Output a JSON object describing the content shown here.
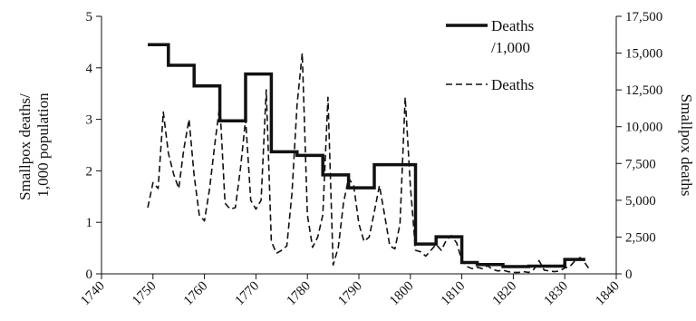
{
  "chart_data": {
    "type": "line",
    "x_ticks": [
      1740,
      1750,
      1760,
      1770,
      1780,
      1790,
      1800,
      1810,
      1820,
      1830,
      1840
    ],
    "xlim": [
      1740,
      1840
    ],
    "y_left": {
      "label_lines": [
        "Smallpox deaths/",
        "1,000 population"
      ],
      "ticks": [
        0,
        1,
        2,
        3,
        4,
        5
      ],
      "ylim": [
        0,
        5
      ]
    },
    "y_right": {
      "label": "Smallpox deaths",
      "ticks": [
        "0",
        "2,500",
        "5,000",
        "7,500",
        "10,000",
        "12,500",
        "15,000",
        "17,500"
      ],
      "tick_values": [
        0,
        2500,
        5000,
        7500,
        10000,
        12500,
        15000,
        17500
      ],
      "ylim": [
        0,
        17500
      ]
    },
    "legend": {
      "rate_label_lines": [
        "Deaths",
        "/1,000"
      ],
      "deaths_label": "Deaths",
      "position": "top-right"
    },
    "series": [
      {
        "name": "Deaths /1,000",
        "axis": "left",
        "style": "solid-step",
        "steps": [
          {
            "from": 1749,
            "to": 1753,
            "value": 4.45
          },
          {
            "from": 1753,
            "to": 1758,
            "value": 4.05
          },
          {
            "from": 1758,
            "to": 1763,
            "value": 3.65
          },
          {
            "from": 1763,
            "to": 1768,
            "value": 2.97
          },
          {
            "from": 1768,
            "to": 1773,
            "value": 3.88
          },
          {
            "from": 1773,
            "to": 1778,
            "value": 2.37
          },
          {
            "from": 1778,
            "to": 1783,
            "value": 2.3
          },
          {
            "from": 1783,
            "to": 1788,
            "value": 1.92
          },
          {
            "from": 1788,
            "to": 1793,
            "value": 1.67
          },
          {
            "from": 1793,
            "to": 1798,
            "value": 2.12
          },
          {
            "from": 1798,
            "to": 1801,
            "value": 2.12
          },
          {
            "from": 1801,
            "to": 1805,
            "value": 0.58
          },
          {
            "from": 1805,
            "to": 1810,
            "value": 0.72
          },
          {
            "from": 1810,
            "to": 1813,
            "value": 0.22
          },
          {
            "from": 1813,
            "to": 1818,
            "value": 0.18
          },
          {
            "from": 1818,
            "to": 1823,
            "value": 0.14
          },
          {
            "from": 1823,
            "to": 1830,
            "value": 0.15
          },
          {
            "from": 1830,
            "to": 1834,
            "value": 0.28
          }
        ]
      },
      {
        "name": "Deaths",
        "axis": "right",
        "style": "dashed",
        "x": [
          1749,
          1750,
          1751,
          1752,
          1753,
          1754,
          1755,
          1756,
          1757,
          1758,
          1759,
          1760,
          1761,
          1762,
          1763,
          1764,
          1765,
          1766,
          1767,
          1768,
          1769,
          1770,
          1771,
          1772,
          1773,
          1774,
          1775,
          1776,
          1777,
          1778,
          1779,
          1780,
          1781,
          1782,
          1783,
          1784,
          1785,
          1786,
          1787,
          1788,
          1789,
          1790,
          1791,
          1792,
          1793,
          1794,
          1795,
          1796,
          1797,
          1798,
          1799,
          1800,
          1801,
          1802,
          1803,
          1804,
          1805,
          1806,
          1807,
          1808,
          1809,
          1810,
          1811,
          1812,
          1813,
          1814,
          1815,
          1816,
          1817,
          1818,
          1819,
          1820,
          1821,
          1822,
          1823,
          1824,
          1825,
          1826,
          1827,
          1828,
          1829,
          1830,
          1831,
          1832,
          1833,
          1834,
          1835
        ],
        "values": [
          4500,
          6200,
          5800,
          11000,
          8200,
          6800,
          5800,
          8500,
          10500,
          6700,
          4000,
          3600,
          5800,
          8800,
          11500,
          4800,
          4400,
          4500,
          7200,
          10500,
          5000,
          4400,
          5000,
          12500,
          2200,
          1400,
          1600,
          1900,
          5500,
          11500,
          15000,
          4000,
          1800,
          2500,
          4000,
          12000,
          600,
          1800,
          4800,
          6500,
          6000,
          3400,
          2200,
          2500,
          4200,
          6000,
          4000,
          1900,
          1700,
          3400,
          12000,
          6000,
          1600,
          1500,
          1200,
          1600,
          2000,
          1600,
          2300,
          2600,
          2100,
          900,
          500,
          350,
          450,
          350,
          550,
          300,
          200,
          250,
          150,
          100,
          100,
          150,
          100,
          300,
          900,
          250,
          200,
          150,
          200,
          400,
          500,
          900,
          1100,
          700,
          200
        ]
      }
    ]
  }
}
